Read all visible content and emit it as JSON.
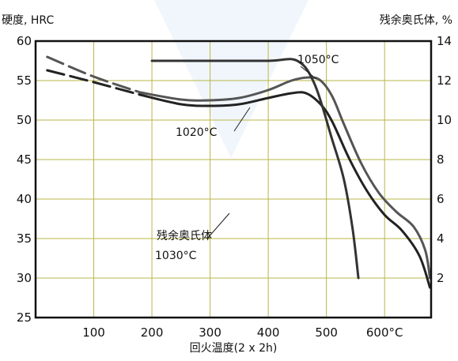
{
  "chart_data": {
    "type": "line",
    "xlabel": "回火温度(2 x 2h)",
    "ylabel": "硬度, HRC",
    "y2label": "残余奥氏体, %",
    "xlim": [
      0,
      680
    ],
    "ylim": [
      25,
      60
    ],
    "y2lim": [
      0,
      14
    ],
    "x_ticks": [
      {
        "value": 100,
        "label": "100"
      },
      {
        "value": 200,
        "label": "200"
      },
      {
        "value": 300,
        "label": "300"
      },
      {
        "value": 400,
        "label": "400"
      },
      {
        "value": 500,
        "label": "500"
      },
      {
        "value": 600,
        "label": "600°C"
      }
    ],
    "y_ticks": [
      25,
      30,
      35,
      40,
      45,
      50,
      55,
      60
    ],
    "y2_ticks": [
      2,
      4,
      6,
      8,
      10,
      12,
      14
    ],
    "grid": true,
    "series": [
      {
        "name": "1050°C",
        "axis": "left",
        "color": "#555555",
        "dashed_until": 180,
        "points": [
          [
            20,
            58
          ],
          [
            100,
            55.5
          ],
          [
            180,
            53.5
          ],
          [
            250,
            52.6
          ],
          [
            300,
            52.5
          ],
          [
            350,
            52.8
          ],
          [
            400,
            53.8
          ],
          [
            440,
            55
          ],
          [
            470,
            55.4
          ],
          [
            490,
            55
          ],
          [
            510,
            53
          ],
          [
            530,
            49.5
          ],
          [
            560,
            44.5
          ],
          [
            590,
            40.8
          ],
          [
            620,
            38.4
          ],
          [
            650,
            36.5
          ],
          [
            670,
            33.5
          ],
          [
            678,
            30
          ]
        ]
      },
      {
        "name": "1020°C",
        "axis": "left",
        "color": "#222222",
        "dashed_until": 180,
        "points": [
          [
            20,
            56.3
          ],
          [
            100,
            54.8
          ],
          [
            180,
            53.2
          ],
          [
            250,
            52
          ],
          [
            300,
            51.8
          ],
          [
            350,
            52
          ],
          [
            400,
            52.8
          ],
          [
            440,
            53.4
          ],
          [
            465,
            53.4
          ],
          [
            490,
            52
          ],
          [
            510,
            49.8
          ],
          [
            540,
            45
          ],
          [
            570,
            41
          ],
          [
            600,
            38
          ],
          [
            630,
            36
          ],
          [
            660,
            32.8
          ],
          [
            678,
            28.8
          ]
        ]
      },
      {
        "name": "残余奥氏体",
        "axis": "right",
        "color": "#333333",
        "points": [
          [
            200,
            13
          ],
          [
            300,
            13
          ],
          [
            400,
            13
          ],
          [
            450,
            13
          ],
          [
            480,
            11.8
          ],
          [
            510,
            9
          ],
          [
            530,
            7
          ],
          [
            545,
            4.5
          ],
          [
            555,
            2
          ]
        ]
      }
    ],
    "annotations": [
      {
        "text": "1050°C",
        "series": "1050°C"
      },
      {
        "text": "1020°C",
        "series": "1020°C"
      },
      {
        "text": "残余奥氏体",
        "series": "残余奥氏体"
      },
      {
        "text": "1030°C",
        "series": "残余奥氏体"
      }
    ]
  }
}
